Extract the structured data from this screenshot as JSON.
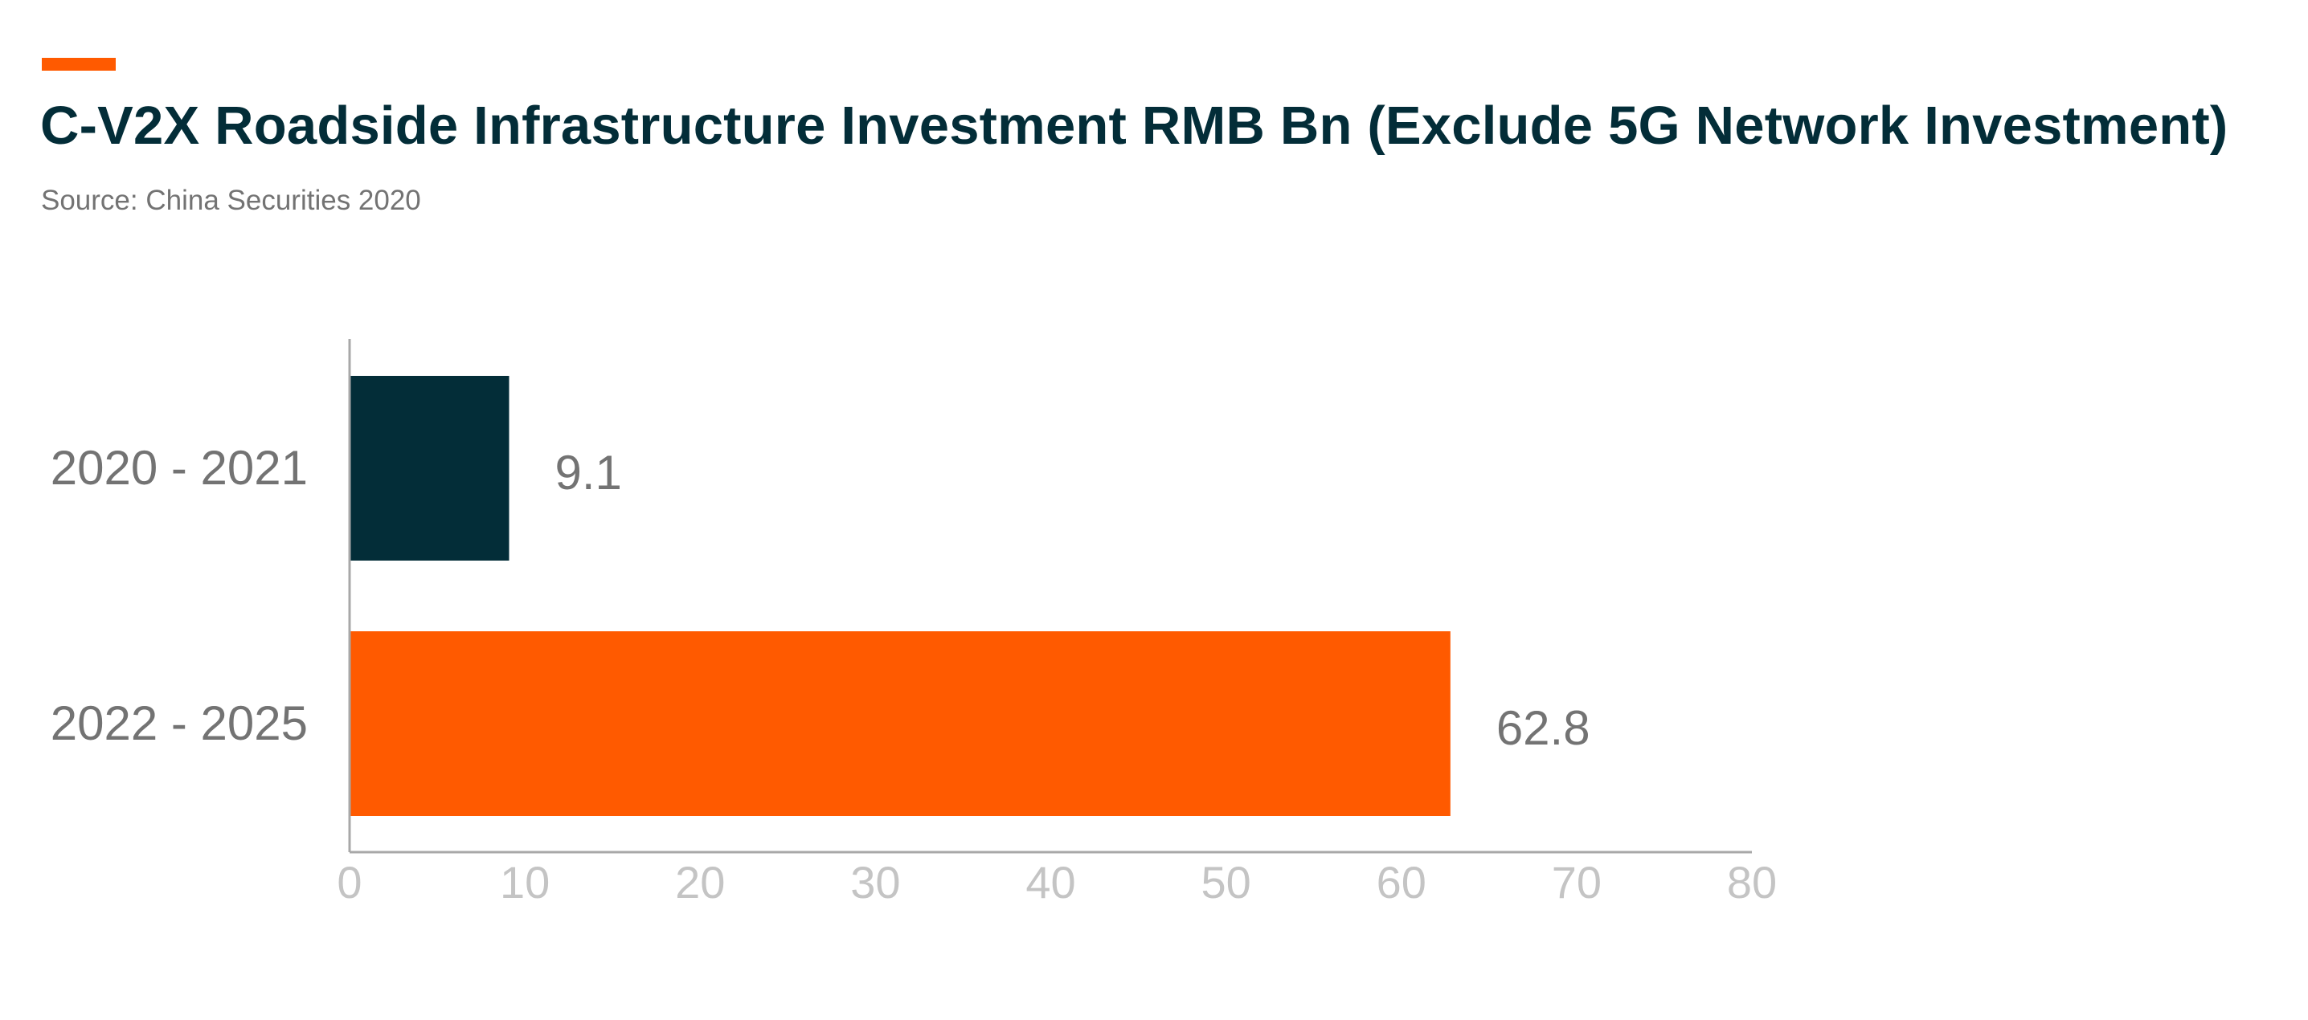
{
  "colors": {
    "accent": "#ff5a00",
    "navy": "#032d38",
    "axis": "#a8a8a8"
  },
  "chart_data": {
    "type": "bar",
    "orientation": "horizontal",
    "title": "C-V2X Roadside Infrastructure Investment RMB Bn (Exclude 5G Network Investment)",
    "subtitle": "Source: China Securities 2020",
    "categories": [
      "2020 - 2021",
      "2022 - 2025"
    ],
    "values": [
      9.1,
      62.8
    ],
    "bar_colors": [
      "#032d38",
      "#ff5a00"
    ],
    "data_labels": [
      "9.1",
      "62.8"
    ],
    "xlim": [
      0,
      80
    ],
    "xticks": [
      0,
      10,
      20,
      30,
      40,
      50,
      60,
      70,
      80
    ],
    "grid": false,
    "legend": "none"
  }
}
